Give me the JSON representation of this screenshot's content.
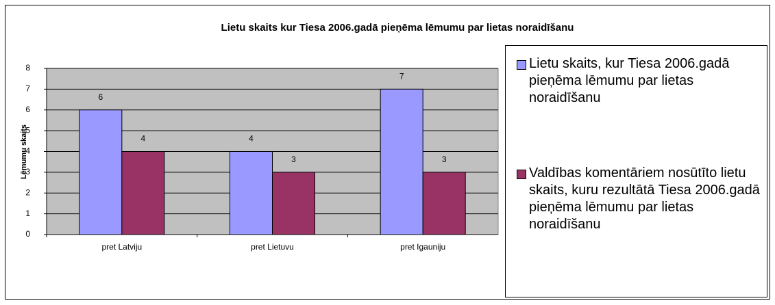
{
  "chart_data": {
    "type": "bar",
    "title": "Lietu skaits kur Tiesa 2006.gadā pieņēma lēmumu par lietas noraidīšanu",
    "y_label": "Lēmumu skaits",
    "categories": [
      "pret Latviju",
      "pret Lietuvu",
      "pret Igauniju"
    ],
    "series": [
      {
        "name": "Lietu skaits, kur Tiesa 2006.gadā pieņēma lēmumu par lietas noraidīšanu",
        "color": "#9999ff",
        "values": [
          6,
          4,
          7
        ]
      },
      {
        "name": "Valdības komentāriem nosūtīto lietu skaits, kuru rezultātā Tiesa 2006.gadā pieņēma lēmumu par lietas noraidīšanu",
        "color": "#993366",
        "values": [
          4,
          3,
          3
        ]
      }
    ],
    "ylim": [
      0,
      8
    ],
    "yticks": [
      0,
      1,
      2,
      3,
      4,
      5,
      6,
      7,
      8
    ],
    "grid": true,
    "legend": "right"
  }
}
